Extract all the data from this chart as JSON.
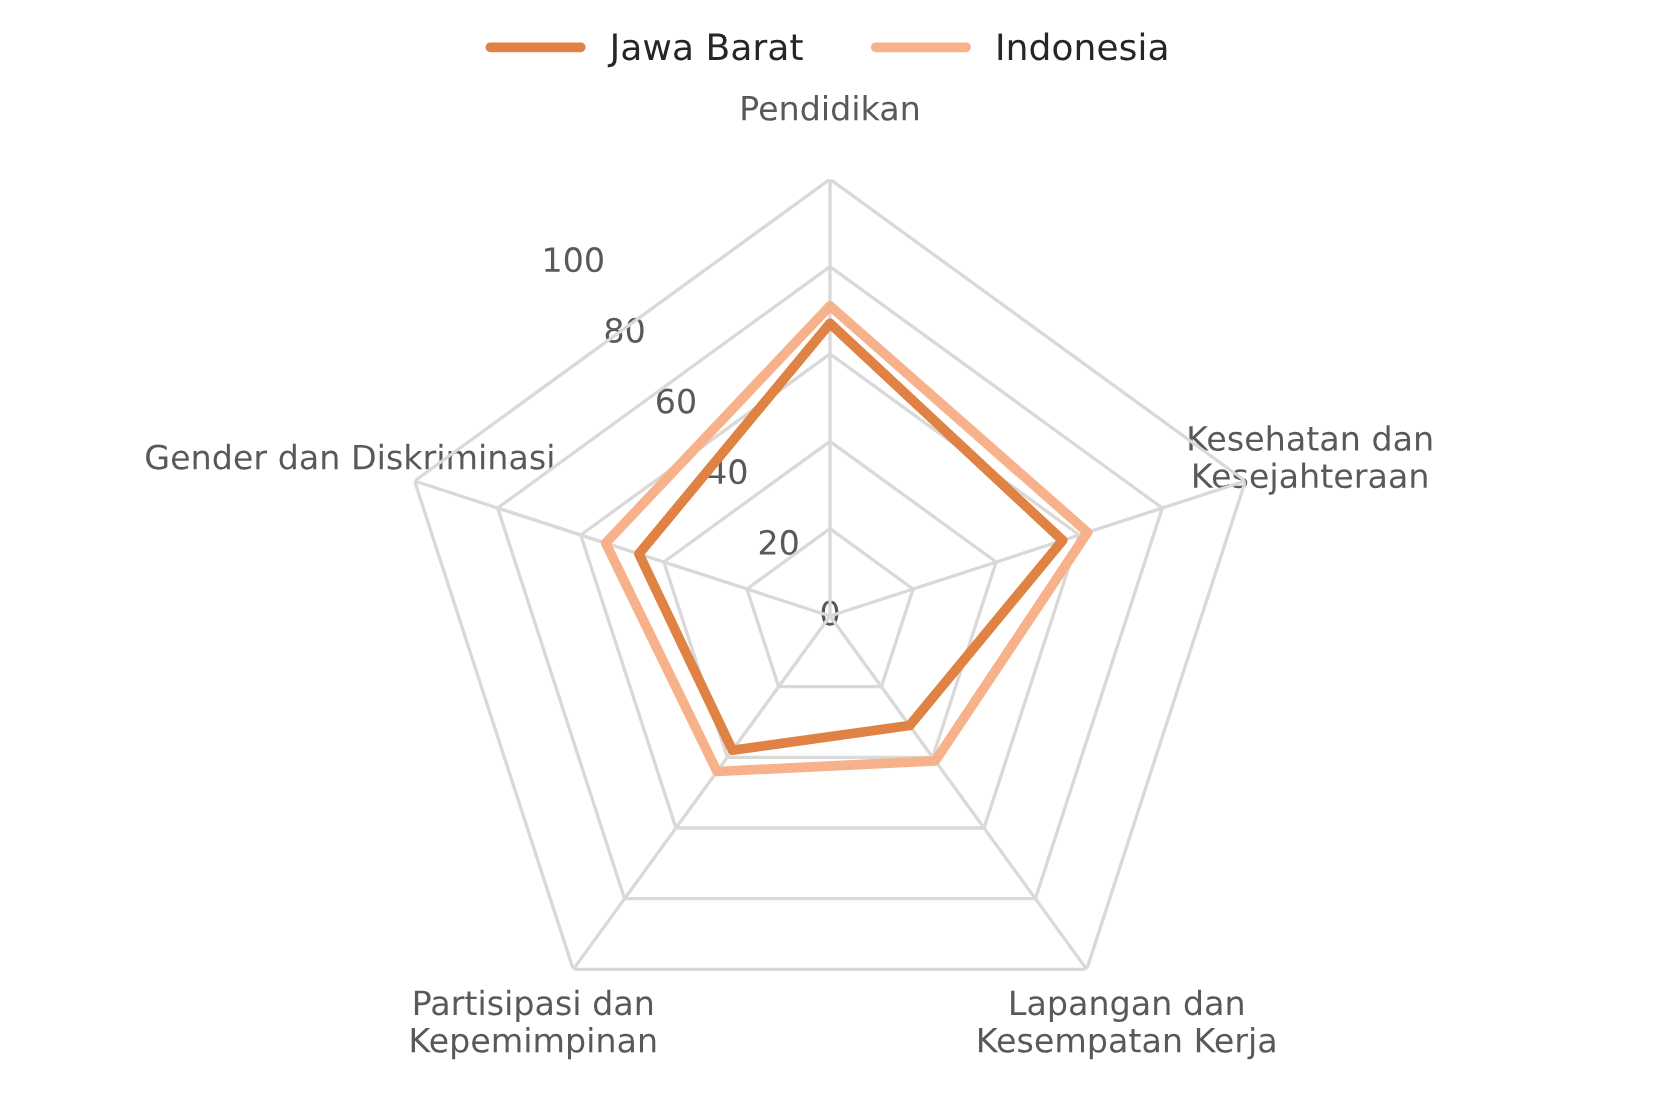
{
  "chart_data": {
    "type": "radar",
    "categories": [
      "Pendidikan",
      "Kesehatan dan\nKesejahteraan",
      "Lapangan dan\nKesempatan Kerja",
      "Partisipasi dan\nKepemimpinan",
      "Gender dan Diskriminasi"
    ],
    "series": [
      {
        "name": "Jawa Barat",
        "color": "#df8244",
        "values": [
          67,
          56,
          31,
          38,
          46
        ]
      },
      {
        "name": "Indonesia",
        "color": "#f7b28b",
        "values": [
          71,
          62,
          41,
          44,
          54
        ]
      }
    ],
    "ylim": [
      0,
      100
    ],
    "yticks": [
      0,
      20,
      40,
      60,
      80,
      100
    ],
    "grid": true,
    "legend": "top",
    "marker": "none"
  }
}
